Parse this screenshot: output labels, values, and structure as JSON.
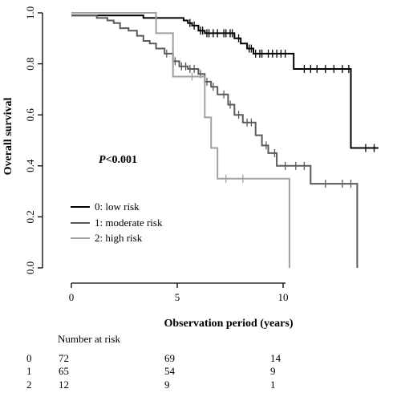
{
  "chart_data": {
    "type": "line",
    "subtype": "kaplan-meier",
    "xlabel": "Observation period (years)",
    "ylabel": "Overall survival",
    "xlim": [
      0,
      14.5
    ],
    "ylim": [
      0,
      1.0
    ],
    "xticks": [
      0,
      5,
      10
    ],
    "yticks": [
      "0.0",
      "0.2",
      "0.4",
      "0.6",
      "0.8",
      "1.0"
    ],
    "grid": false,
    "annotation": {
      "p_italic": "P",
      "p_rest": "<0.001"
    },
    "legend": {
      "position": "bottom-left"
    },
    "series": [
      {
        "name": "0: low risk",
        "color": "#000000",
        "steps": [
          [
            0,
            0.99
          ],
          [
            3.4,
            0.99
          ],
          [
            3.4,
            0.98
          ],
          [
            5.3,
            0.98
          ],
          [
            5.3,
            0.97
          ],
          [
            5.5,
            0.97
          ],
          [
            5.5,
            0.96
          ],
          [
            5.7,
            0.96
          ],
          [
            5.7,
            0.95
          ],
          [
            6.0,
            0.95
          ],
          [
            6.0,
            0.93
          ],
          [
            6.3,
            0.93
          ],
          [
            6.3,
            0.92
          ],
          [
            7.7,
            0.92
          ],
          [
            7.7,
            0.9
          ],
          [
            8.0,
            0.9
          ],
          [
            8.0,
            0.88
          ],
          [
            8.3,
            0.88
          ],
          [
            8.3,
            0.86
          ],
          [
            8.6,
            0.86
          ],
          [
            8.6,
            0.84
          ],
          [
            10.5,
            0.84
          ],
          [
            10.5,
            0.78
          ],
          [
            13.2,
            0.78
          ],
          [
            13.2,
            0.47
          ],
          [
            14.5,
            0.47
          ]
        ],
        "censor": [
          5.6,
          5.8,
          6.1,
          6.2,
          6.4,
          6.5,
          6.7,
          6.9,
          7.2,
          7.3,
          7.5,
          7.6,
          7.9,
          8.4,
          8.5,
          8.7,
          8.9,
          9.0,
          9.3,
          9.5,
          9.7,
          9.9,
          10.1,
          11.0,
          11.3,
          11.6,
          12.0,
          12.4,
          12.8,
          13.1,
          13.9,
          14.3
        ]
      },
      {
        "name": "1: moderate risk",
        "color": "#5a5a5a",
        "steps": [
          [
            0,
            0.99
          ],
          [
            1.2,
            0.99
          ],
          [
            1.2,
            0.98
          ],
          [
            1.7,
            0.98
          ],
          [
            1.7,
            0.97
          ],
          [
            2.0,
            0.97
          ],
          [
            2.0,
            0.96
          ],
          [
            2.3,
            0.96
          ],
          [
            2.3,
            0.94
          ],
          [
            2.7,
            0.94
          ],
          [
            2.7,
            0.93
          ],
          [
            3.1,
            0.93
          ],
          [
            3.1,
            0.91
          ],
          [
            3.4,
            0.91
          ],
          [
            3.4,
            0.89
          ],
          [
            3.7,
            0.89
          ],
          [
            3.7,
            0.88
          ],
          [
            4.0,
            0.88
          ],
          [
            4.0,
            0.86
          ],
          [
            4.4,
            0.86
          ],
          [
            4.4,
            0.84
          ],
          [
            4.8,
            0.84
          ],
          [
            4.8,
            0.81
          ],
          [
            5.1,
            0.81
          ],
          [
            5.1,
            0.79
          ],
          [
            5.5,
            0.79
          ],
          [
            5.5,
            0.78
          ],
          [
            6.0,
            0.78
          ],
          [
            6.0,
            0.76
          ],
          [
            6.3,
            0.76
          ],
          [
            6.3,
            0.73
          ],
          [
            6.6,
            0.73
          ],
          [
            6.6,
            0.71
          ],
          [
            6.9,
            0.71
          ],
          [
            6.9,
            0.68
          ],
          [
            7.4,
            0.68
          ],
          [
            7.4,
            0.64
          ],
          [
            7.7,
            0.64
          ],
          [
            7.7,
            0.6
          ],
          [
            8.1,
            0.6
          ],
          [
            8.1,
            0.57
          ],
          [
            8.7,
            0.57
          ],
          [
            8.7,
            0.52
          ],
          [
            9.0,
            0.52
          ],
          [
            9.0,
            0.48
          ],
          [
            9.3,
            0.48
          ],
          [
            9.3,
            0.45
          ],
          [
            9.7,
            0.45
          ],
          [
            9.7,
            0.4
          ],
          [
            11.3,
            0.4
          ],
          [
            11.3,
            0.33
          ],
          [
            13.5,
            0.33
          ],
          [
            13.5,
            0.0
          ]
        ],
        "censor": [
          4.5,
          4.9,
          5.2,
          5.4,
          5.6,
          5.8,
          6.1,
          6.4,
          6.7,
          7.2,
          7.5,
          7.9,
          8.3,
          8.5,
          9.2,
          9.6,
          10.1,
          10.6,
          11.0,
          12.0,
          12.8,
          13.2
        ]
      },
      {
        "name": "2: high risk",
        "color": "#a0a0a0",
        "steps": [
          [
            0,
            1.0
          ],
          [
            4.0,
            1.0
          ],
          [
            4.0,
            0.92
          ],
          [
            4.8,
            0.92
          ],
          [
            4.8,
            0.75
          ],
          [
            6.3,
            0.75
          ],
          [
            6.3,
            0.59
          ],
          [
            6.6,
            0.59
          ],
          [
            6.6,
            0.47
          ],
          [
            6.9,
            0.47
          ],
          [
            6.9,
            0.35
          ],
          [
            10.3,
            0.35
          ],
          [
            10.3,
            0.0
          ]
        ],
        "censor": [
          5.7,
          7.3,
          8.1
        ]
      }
    ],
    "risk_table": {
      "title": "Number at risk",
      "times": [
        0,
        5,
        10
      ],
      "rows": [
        {
          "label": "0",
          "counts": [
            "72",
            "69",
            "14"
          ]
        },
        {
          "label": "1",
          "counts": [
            "65",
            "54",
            "9"
          ]
        },
        {
          "label": "2",
          "counts": [
            "12",
            "9",
            "1"
          ]
        }
      ]
    }
  }
}
